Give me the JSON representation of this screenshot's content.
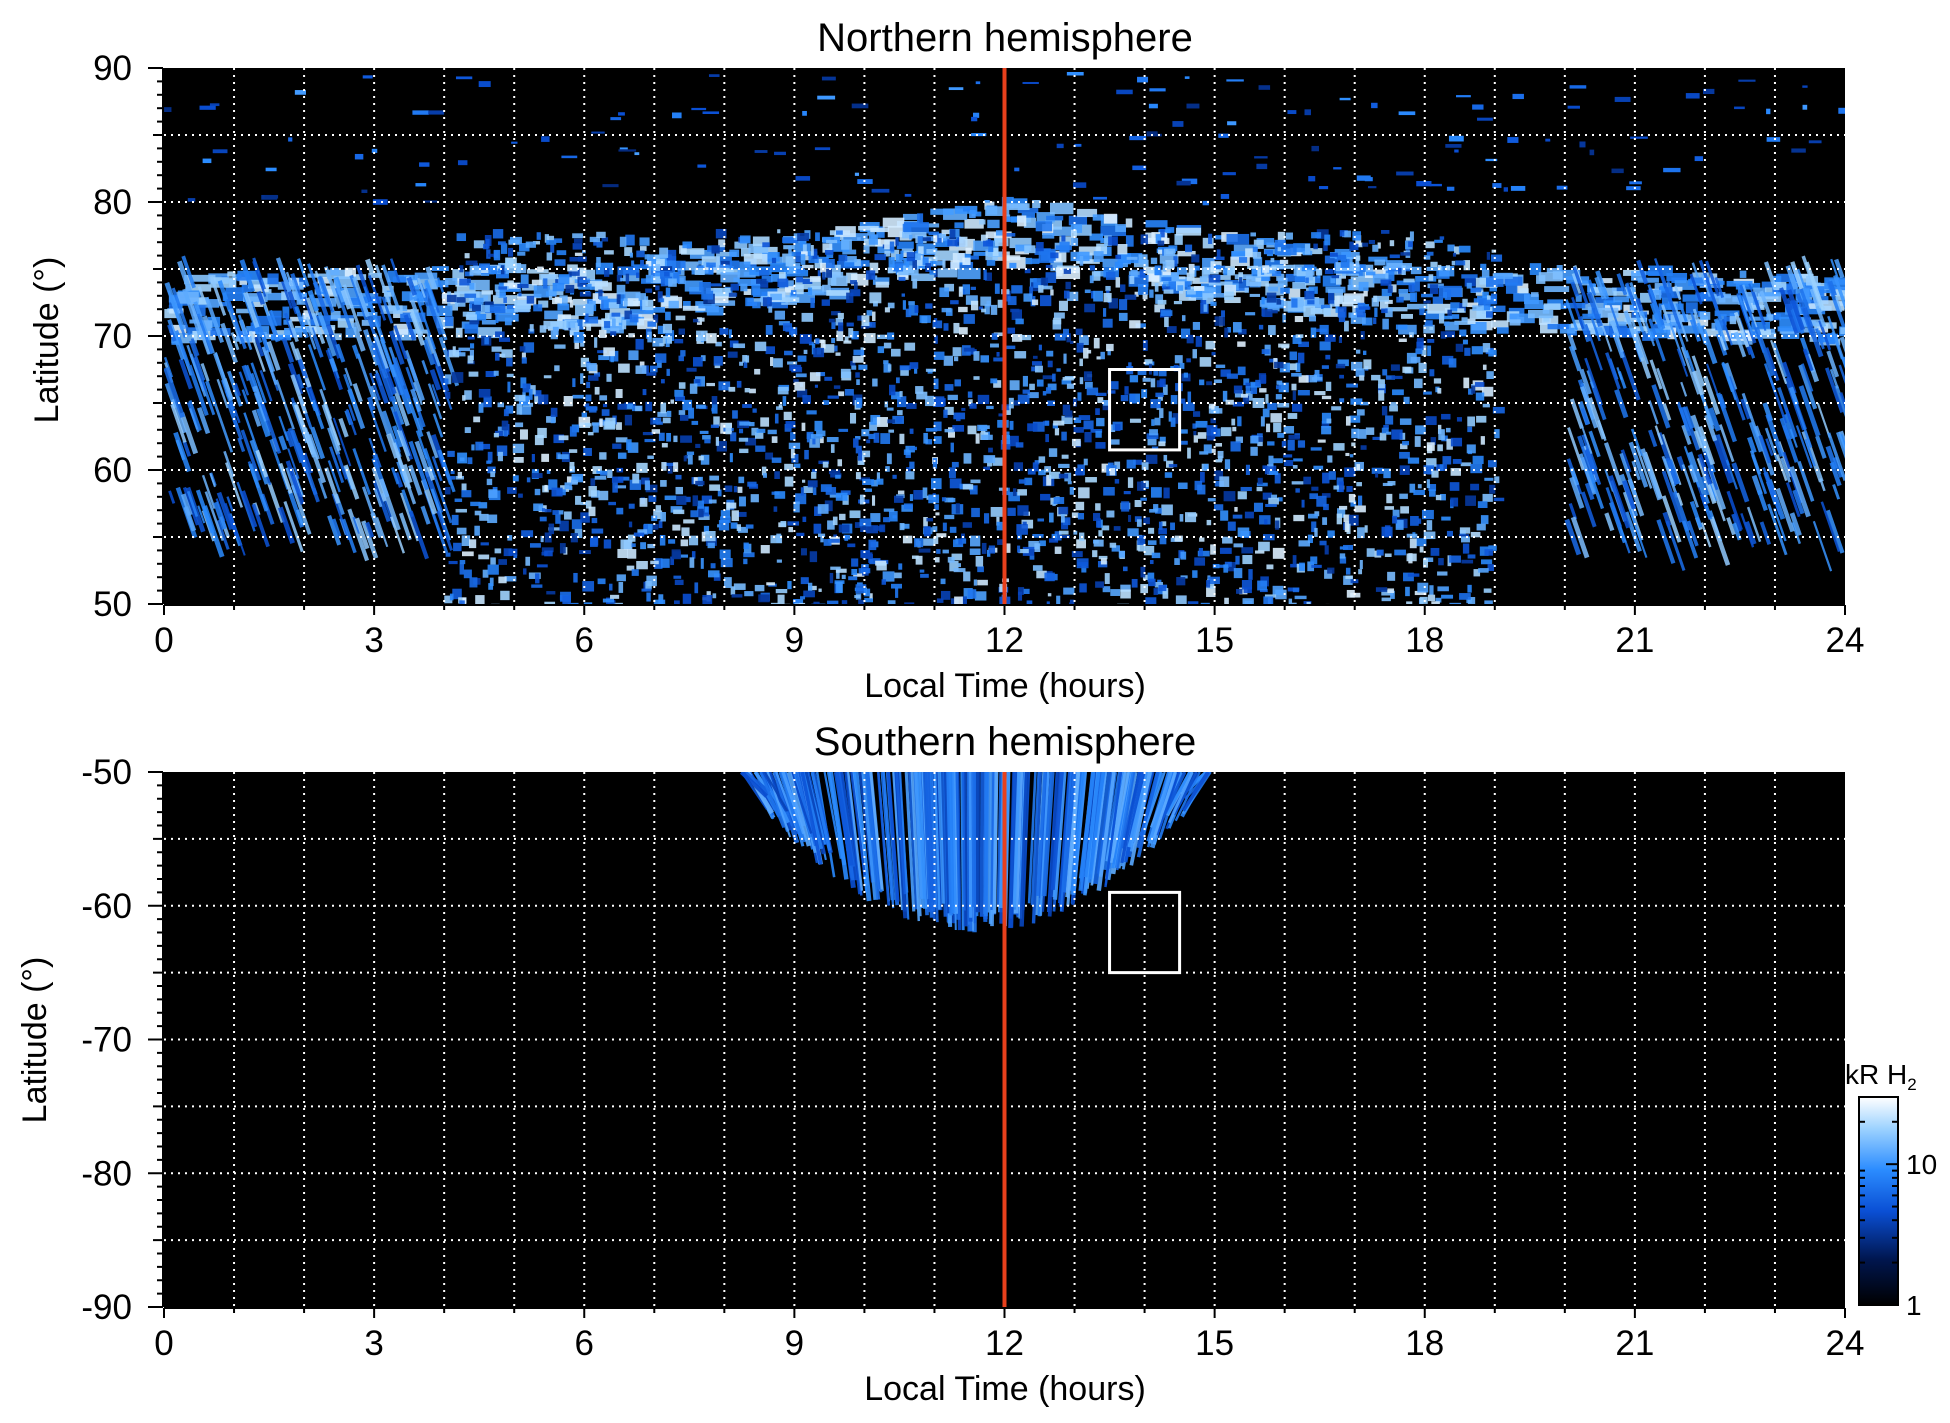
{
  "colors": {
    "background": "#000000",
    "noon_line": "#e8401c",
    "grid": "#ffffff",
    "box": "#ffffff",
    "colormap": [
      "#000000",
      "#001a5c",
      "#0a4fd4",
      "#2b8cff",
      "#9ed3ff",
      "#ffffff"
    ]
  },
  "chart_data": [
    {
      "type": "heatmap",
      "title": "Northern hemisphere",
      "xlabel": "Local Time (hours)",
      "ylabel": "Latitude (°)",
      "xlim": [
        0,
        24
      ],
      "ylim": [
        50,
        90
      ],
      "xticks": [
        0,
        3,
        6,
        9,
        12,
        15,
        18,
        21,
        24
      ],
      "yticks": [
        50,
        60,
        70,
        80,
        90
      ],
      "grid": true,
      "reference_line_lt": 12,
      "box": {
        "lt": [
          13.5,
          14.5
        ],
        "lat": [
          61.5,
          67.5
        ]
      },
      "emission": {
        "band_lt": [
          4,
          19
        ],
        "band_lat_max": 78,
        "main_oval_lat": [
          73,
          80
        ]
      }
    },
    {
      "type": "heatmap",
      "title": "Southern hemisphere",
      "xlabel": "Local Time (hours)",
      "ylabel": "Latitude (°)",
      "xlim": [
        0,
        24
      ],
      "ylim": [
        -90,
        -50
      ],
      "xticks": [
        0,
        3,
        6,
        9,
        12,
        15,
        18,
        21,
        24
      ],
      "yticks": [
        -90,
        -80,
        -70,
        -60,
        -50
      ],
      "grid": true,
      "reference_line_lt": 12,
      "box": {
        "lt": [
          13.5,
          14.5
        ],
        "lat": [
          -65,
          -59
        ]
      },
      "emission": {
        "band_lt": [
          8.6,
          14.6
        ],
        "band_lat_min": -62
      }
    }
  ],
  "colorbar": {
    "unit_label": "kR H",
    "unit_sub": "2",
    "ticks": [
      1,
      10
    ],
    "range": [
      1,
      30
    ],
    "scale": "log"
  }
}
